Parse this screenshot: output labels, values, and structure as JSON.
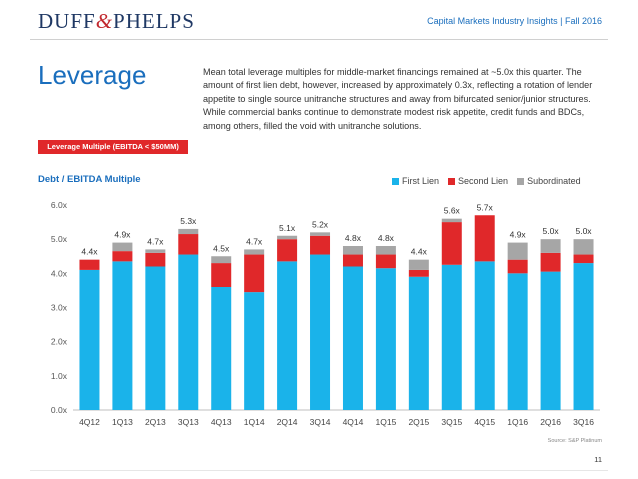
{
  "header": {
    "logo_left": "DUFF",
    "logo_amp": "&",
    "logo_right": "PHELPS",
    "note": "Capital Markets Industry Insights | Fall 2016"
  },
  "page_title": "Leverage",
  "description": "Mean total leverage multiples for middle-market financings remained at ~5.0x this quarter. The amount of first lien debt, however, increased by approximately 0.3x, reflecting a rotation of lender appetite to single source unitranche structures and away from bifurcated senior/junior structures. While commercial banks continue to demonstrate modest risk appetite, credit funds and BDCs, among others, filled the void with unitranche solutions.",
  "badge": "Leverage Multiple (EBITDA < $50MM)",
  "colors": {
    "first_lien": "#1ab3ea",
    "second_lien": "#e0282a",
    "subordinated": "#a6a6a6",
    "accent": "#1a6ebd"
  },
  "source": "Source: S&P Platinum",
  "page_number": "11",
  "chart_data": {
    "type": "bar",
    "stacked": true,
    "title": "Debt / EBITDA Multiple",
    "xlabel": "",
    "ylabel": "",
    "ylim": [
      0,
      6
    ],
    "yticks": [
      "0.0x",
      "1.0x",
      "2.0x",
      "3.0x",
      "4.0x",
      "5.0x",
      "6.0x"
    ],
    "grid": false,
    "legend_position": "top-right",
    "categories": [
      "4Q12",
      "1Q13",
      "2Q13",
      "3Q13",
      "4Q13",
      "1Q14",
      "2Q14",
      "3Q14",
      "4Q14",
      "1Q15",
      "2Q15",
      "3Q15",
      "4Q15",
      "1Q16",
      "2Q16",
      "3Q16"
    ],
    "series": [
      {
        "name": "First Lien",
        "values": [
          4.1,
          4.35,
          4.2,
          4.55,
          3.6,
          3.45,
          4.35,
          4.55,
          4.2,
          4.15,
          3.9,
          4.25,
          4.35,
          4.0,
          4.05,
          4.3
        ]
      },
      {
        "name": "Second Lien",
        "values": [
          0.3,
          0.3,
          0.4,
          0.6,
          0.7,
          1.1,
          0.65,
          0.55,
          0.35,
          0.4,
          0.2,
          1.25,
          1.35,
          0.4,
          0.55,
          0.25
        ]
      },
      {
        "name": "Subordinated",
        "values": [
          0.0,
          0.25,
          0.1,
          0.15,
          0.2,
          0.15,
          0.1,
          0.1,
          0.25,
          0.25,
          0.3,
          0.1,
          0.0,
          0.5,
          0.4,
          0.45
        ]
      }
    ],
    "data_labels": [
      "4.4x",
      "4.9x",
      "4.7x",
      "5.3x",
      "4.5x",
      "4.7x",
      "5.1x",
      "5.2x",
      "4.8x",
      "4.8x",
      "4.4x",
      "5.6x",
      "5.7x",
      "4.9x",
      "5.0x",
      "5.0x"
    ]
  }
}
